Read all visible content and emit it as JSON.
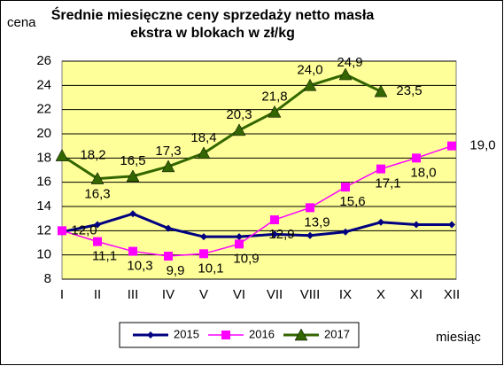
{
  "chart_data": {
    "type": "line",
    "title": "Średnie miesięczne ceny sprzedaży netto masła ekstra w blokach w zł/kg",
    "y_label": "cena",
    "x_label": "miesiąc",
    "categories": [
      "I",
      "II",
      "III",
      "IV",
      "V",
      "VI",
      "VII",
      "VIII",
      "IX",
      "X",
      "XI",
      "XII"
    ],
    "series": [
      {
        "name": "2015",
        "color": "#000080",
        "marker": "diamond",
        "values": [
          11.9,
          12.5,
          13.4,
          12.2,
          11.5,
          11.5,
          11.7,
          11.6,
          11.9,
          12.7,
          12.5,
          12.5
        ]
      },
      {
        "name": "2016",
        "color": "#ff00ff",
        "marker": "square",
        "values": [
          12.0,
          11.1,
          10.3,
          9.9,
          10.1,
          10.9,
          12.9,
          13.9,
          15.6,
          17.1,
          18.0,
          19.0
        ],
        "value_labels": [
          "12,0",
          "11,1",
          "10,3",
          "9,9",
          "10,1",
          "10,9",
          "12,9",
          "13,9",
          "15,6",
          "17,1",
          "18,0",
          "19,0"
        ]
      },
      {
        "name": "2017",
        "color": "#336600",
        "marker": "triangle",
        "values": [
          18.2,
          16.3,
          16.5,
          17.3,
          18.4,
          20.3,
          21.8,
          24.0,
          24.9,
          23.5,
          null,
          null
        ],
        "value_labels": [
          "18,2",
          "16,3",
          "16,5",
          "17,3",
          "18,4",
          "20,3",
          "21,8",
          "24,0",
          "24,9",
          "23,5",
          null,
          null
        ]
      }
    ],
    "ylim": [
      8,
      26
    ],
    "yticks": [
      8,
      10,
      12,
      14,
      16,
      18,
      20,
      22,
      24,
      26
    ],
    "grid": true,
    "legend": "bottom"
  }
}
